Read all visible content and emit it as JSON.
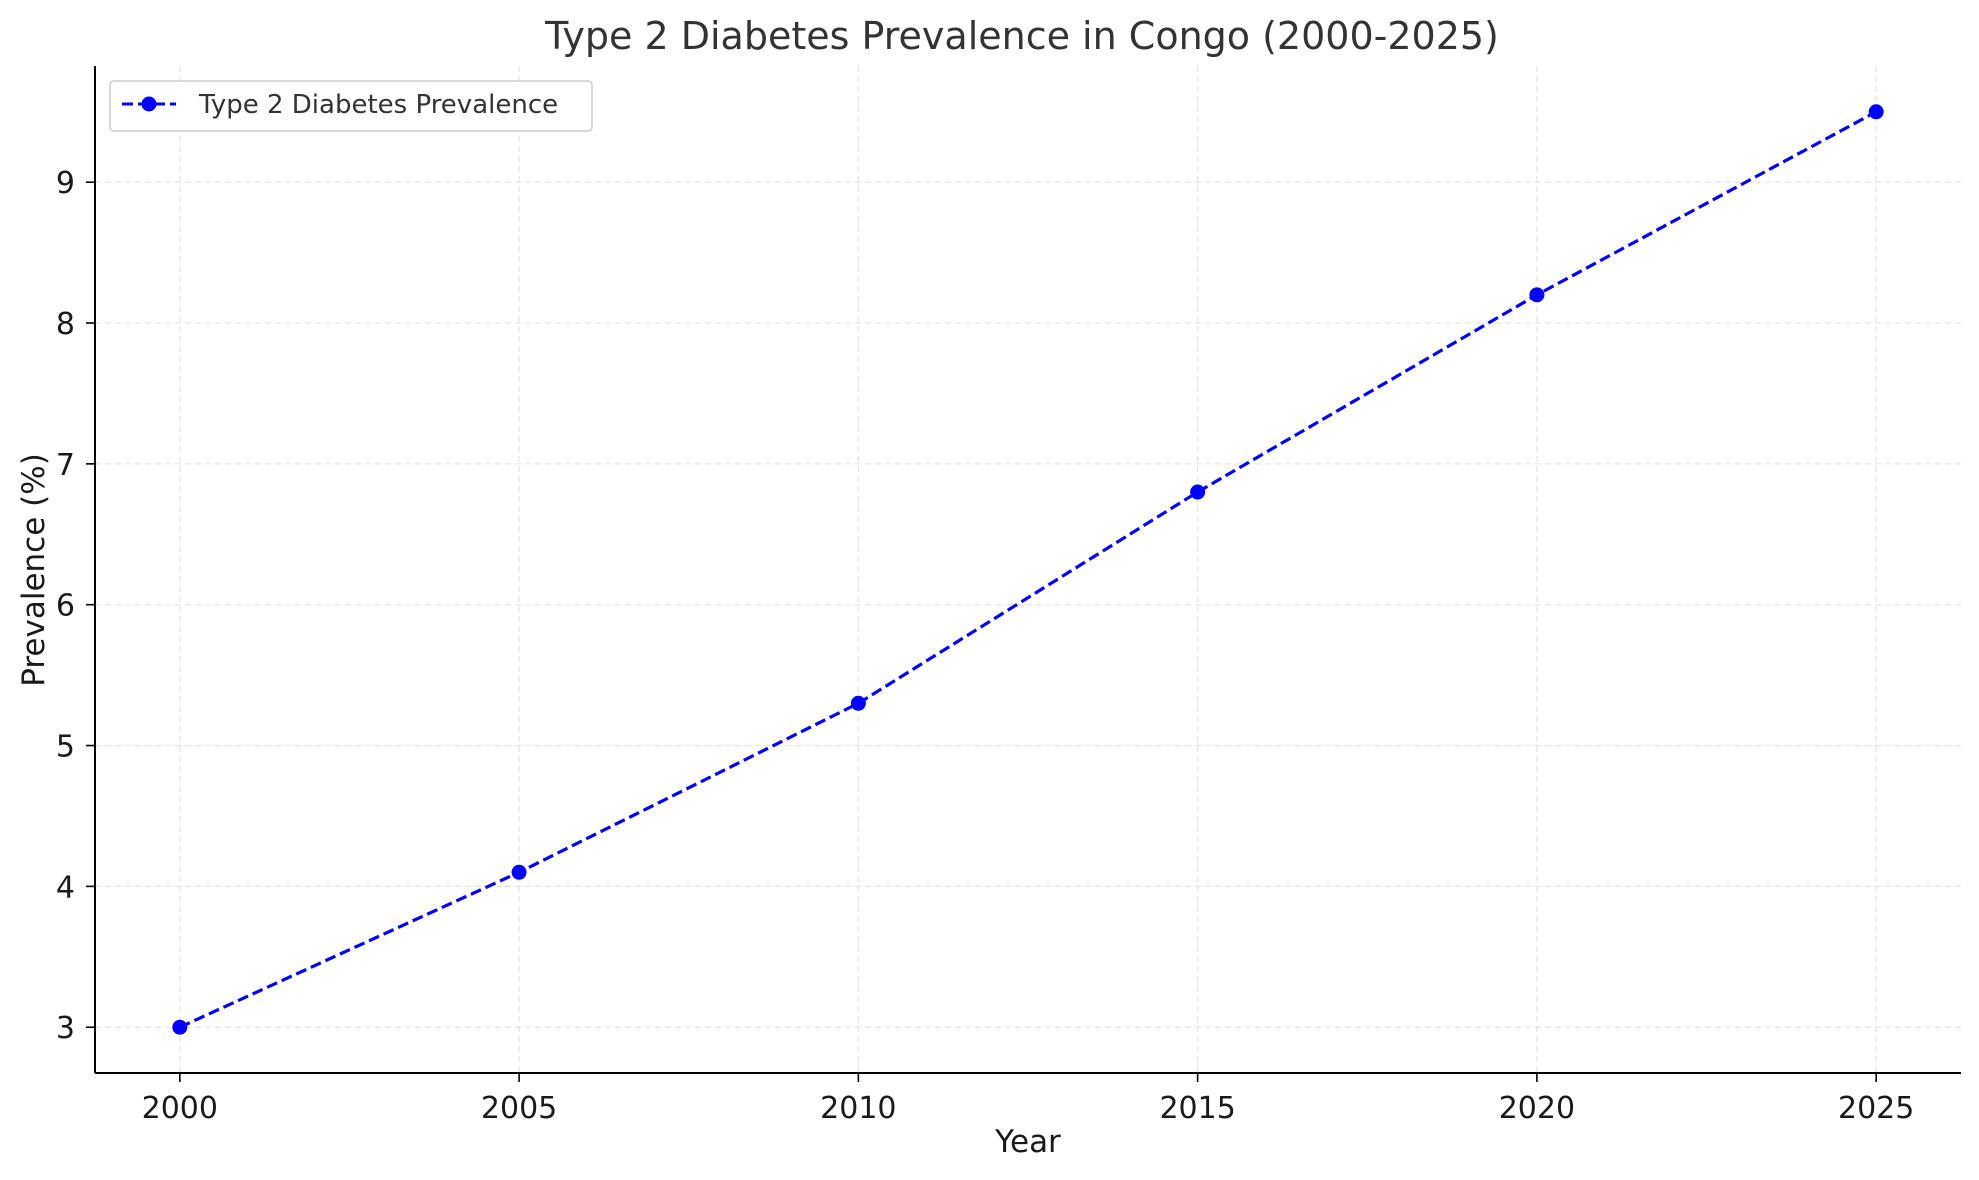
{
  "chart_data": {
    "type": "line",
    "title": "Type 2 Diabetes Prevalence in Congo (2000-2025)",
    "xlabel": "Year",
    "ylabel": "Prevalence (%)",
    "x": [
      2000,
      2005,
      2010,
      2015,
      2020,
      2025
    ],
    "series": [
      {
        "name": "Type 2 Diabetes Prevalence",
        "values": [
          3.0,
          4.1,
          5.3,
          6.8,
          8.2,
          9.5
        ],
        "color": "#0000ff",
        "line_style": "dashed",
        "marker": "circle"
      }
    ],
    "xticks": [
      2000,
      2005,
      2010,
      2015,
      2020,
      2025
    ],
    "yticks": [
      3,
      4,
      5,
      6,
      7,
      8,
      9
    ],
    "xlim": [
      1998.75,
      2026.25
    ],
    "ylim": [
      2.675,
      9.825
    ],
    "grid": true,
    "legend_position": "top-left"
  }
}
